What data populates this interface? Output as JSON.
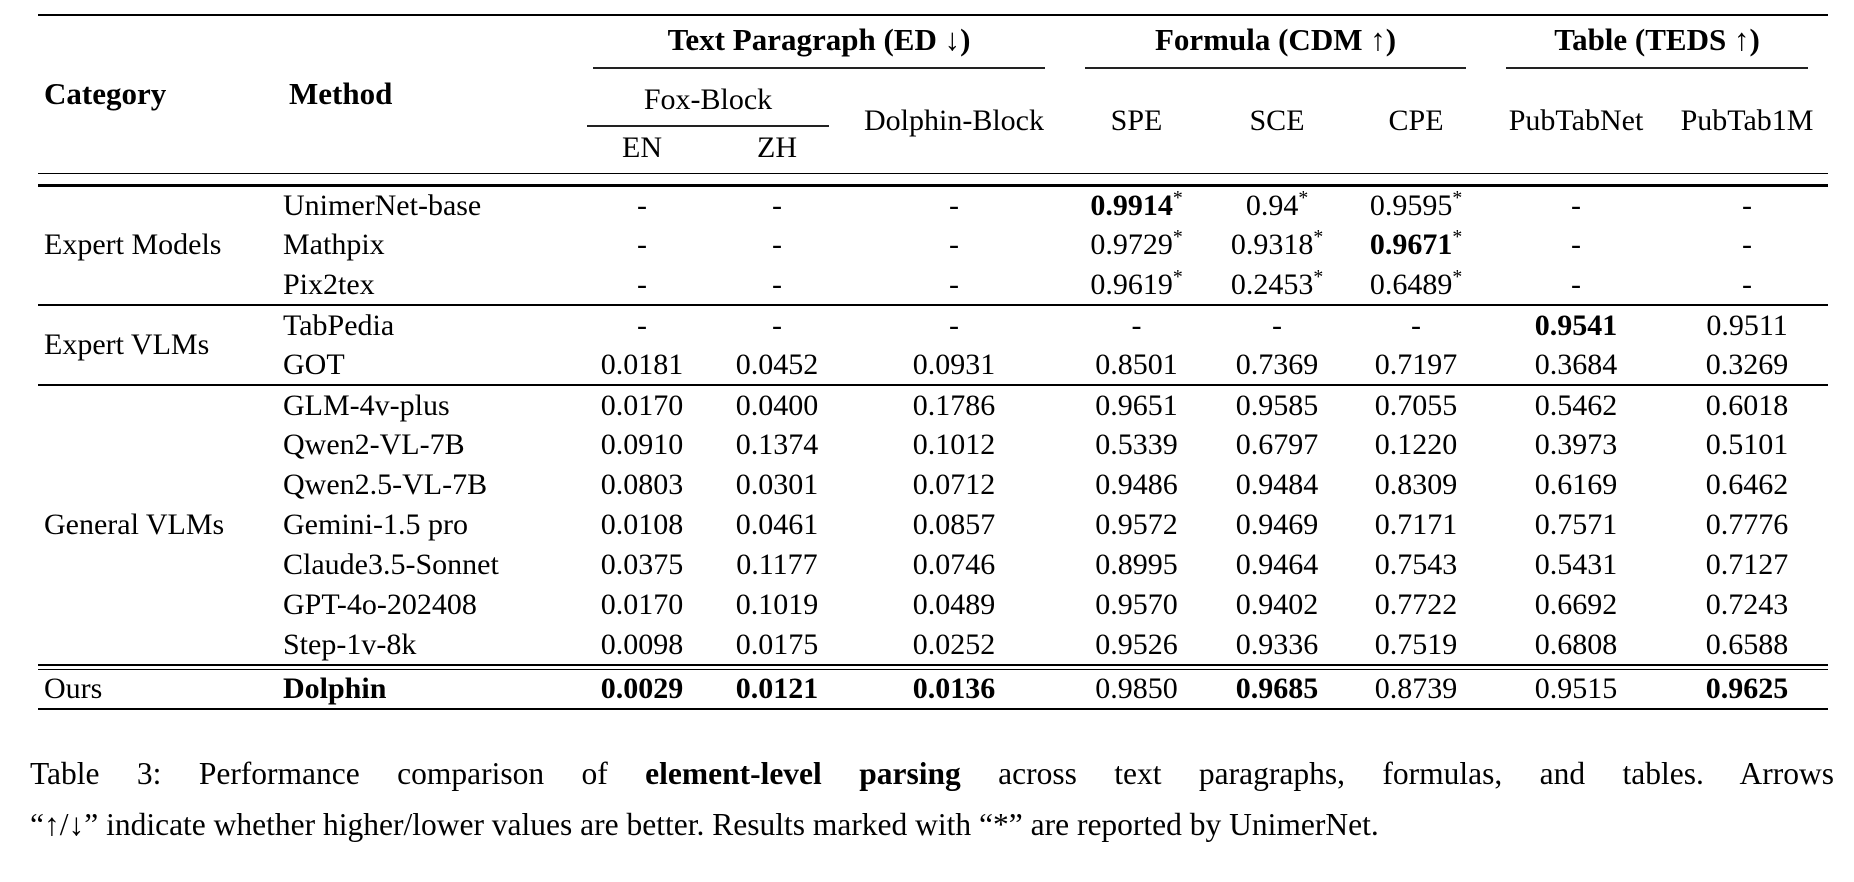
{
  "table": {
    "header": {
      "category": "Category",
      "method": "Method",
      "groups": [
        {
          "label": "Text Paragraph (ED ↓)"
        },
        {
          "label": "Formula (CDM ↑)"
        },
        {
          "label": "Table (TEDS ↑)"
        }
      ],
      "fox_block": "Fox-Block",
      "dolphin_block": "Dolphin-Block",
      "lang_cols": [
        "EN",
        "ZH"
      ],
      "metric_cols": [
        "SPE",
        "SCE",
        "CPE",
        "PubTabNet",
        "PubTab1M"
      ]
    },
    "sections": [
      {
        "category": "Expert Models",
        "rows": [
          {
            "method": "UnimerNet-base",
            "cells": [
              {
                "v": "-"
              },
              {
                "v": "-"
              },
              {
                "v": "-"
              },
              {
                "v": "0.9914",
                "sup": "*",
                "bold": true
              },
              {
                "v": "0.94",
                "sup": "*"
              },
              {
                "v": "0.9595",
                "sup": "*"
              },
              {
                "v": "-"
              },
              {
                "v": "-"
              }
            ]
          },
          {
            "method": "Mathpix",
            "cells": [
              {
                "v": "-"
              },
              {
                "v": "-"
              },
              {
                "v": "-"
              },
              {
                "v": "0.9729",
                "sup": "*"
              },
              {
                "v": "0.9318",
                "sup": "*"
              },
              {
                "v": "0.9671",
                "sup": "*",
                "bold": true
              },
              {
                "v": "-"
              },
              {
                "v": "-"
              }
            ]
          },
          {
            "method": "Pix2tex",
            "cells": [
              {
                "v": "-"
              },
              {
                "v": "-"
              },
              {
                "v": "-"
              },
              {
                "v": "0.9619",
                "sup": "*"
              },
              {
                "v": "0.2453",
                "sup": "*"
              },
              {
                "v": "0.6489",
                "sup": "*"
              },
              {
                "v": "-"
              },
              {
                "v": "-"
              }
            ]
          }
        ]
      },
      {
        "category": "Expert VLMs",
        "rows": [
          {
            "method": "TabPedia",
            "cells": [
              {
                "v": "-"
              },
              {
                "v": "-"
              },
              {
                "v": "-"
              },
              {
                "v": "-"
              },
              {
                "v": "-"
              },
              {
                "v": "-"
              },
              {
                "v": "0.9541",
                "bold": true
              },
              {
                "v": "0.9511"
              }
            ]
          },
          {
            "method": "GOT",
            "cells": [
              {
                "v": "0.0181"
              },
              {
                "v": "0.0452"
              },
              {
                "v": "0.0931"
              },
              {
                "v": "0.8501"
              },
              {
                "v": "0.7369"
              },
              {
                "v": "0.7197"
              },
              {
                "v": "0.3684"
              },
              {
                "v": "0.3269"
              }
            ]
          }
        ]
      },
      {
        "category": "General VLMs",
        "rows": [
          {
            "method": "GLM-4v-plus",
            "cells": [
              {
                "v": "0.0170"
              },
              {
                "v": "0.0400"
              },
              {
                "v": "0.1786"
              },
              {
                "v": "0.9651"
              },
              {
                "v": "0.9585"
              },
              {
                "v": "0.7055"
              },
              {
                "v": "0.5462"
              },
              {
                "v": "0.6018"
              }
            ]
          },
          {
            "method": "Qwen2-VL-7B",
            "cells": [
              {
                "v": "0.0910"
              },
              {
                "v": "0.1374"
              },
              {
                "v": "0.1012"
              },
              {
                "v": "0.5339"
              },
              {
                "v": "0.6797"
              },
              {
                "v": "0.1220"
              },
              {
                "v": "0.3973"
              },
              {
                "v": "0.5101"
              }
            ]
          },
          {
            "method": "Qwen2.5-VL-7B",
            "cells": [
              {
                "v": "0.0803"
              },
              {
                "v": "0.0301"
              },
              {
                "v": "0.0712"
              },
              {
                "v": "0.9486"
              },
              {
                "v": "0.9484"
              },
              {
                "v": "0.8309"
              },
              {
                "v": "0.6169"
              },
              {
                "v": "0.6462"
              }
            ]
          },
          {
            "method": "Gemini-1.5 pro",
            "cells": [
              {
                "v": "0.0108"
              },
              {
                "v": "0.0461"
              },
              {
                "v": "0.0857"
              },
              {
                "v": "0.9572"
              },
              {
                "v": "0.9469"
              },
              {
                "v": "0.7171"
              },
              {
                "v": "0.7571"
              },
              {
                "v": "0.7776"
              }
            ]
          },
          {
            "method": "Claude3.5-Sonnet",
            "cells": [
              {
                "v": "0.0375"
              },
              {
                "v": "0.1177"
              },
              {
                "v": "0.0746"
              },
              {
                "v": "0.8995"
              },
              {
                "v": "0.9464"
              },
              {
                "v": "0.7543"
              },
              {
                "v": "0.5431"
              },
              {
                "v": "0.7127"
              }
            ]
          },
          {
            "method": "GPT-4o-202408",
            "cells": [
              {
                "v": "0.0170"
              },
              {
                "v": "0.1019"
              },
              {
                "v": "0.0489"
              },
              {
                "v": "0.9570"
              },
              {
                "v": "0.9402"
              },
              {
                "v": "0.7722"
              },
              {
                "v": "0.6692"
              },
              {
                "v": "0.7243"
              }
            ]
          },
          {
            "method": "Step-1v-8k",
            "cells": [
              {
                "v": "0.0098"
              },
              {
                "v": "0.0175"
              },
              {
                "v": "0.0252"
              },
              {
                "v": "0.9526"
              },
              {
                "v": "0.9336"
              },
              {
                "v": "0.7519"
              },
              {
                "v": "0.6808"
              },
              {
                "v": "0.6588"
              }
            ]
          }
        ]
      },
      {
        "category": "Ours",
        "ours": true,
        "rows": [
          {
            "method": "Dolphin",
            "method_bold": true,
            "cells": [
              {
                "v": "0.0029",
                "bold": true
              },
              {
                "v": "0.0121",
                "bold": true
              },
              {
                "v": "0.0136",
                "bold": true
              },
              {
                "v": "0.9850"
              },
              {
                "v": "0.9685",
                "bold": true
              },
              {
                "v": "0.8739"
              },
              {
                "v": "0.9515"
              },
              {
                "v": "0.9625",
                "bold": true
              }
            ]
          }
        ]
      }
    ]
  },
  "caption": {
    "line1_pre": "Table 3:  Performance comparison of ",
    "line1_bold": "element-level parsing",
    "line1_post": " across text paragraphs, formulas, and tables. Arrows",
    "line2": "“↑/↓” indicate whether higher/lower values are better. Results marked with “*” are reported by UnimerNet."
  }
}
